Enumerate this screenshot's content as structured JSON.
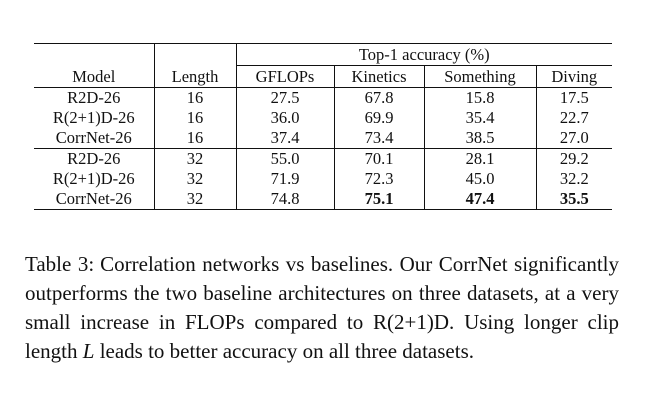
{
  "table": {
    "header_group_label": "Top-1 accuracy (%)",
    "columns": [
      "Model",
      "Length",
      "GFLOPs",
      "Kinetics",
      "Something",
      "Diving"
    ],
    "groups": [
      [
        {
          "model": "R2D-26",
          "length": "16",
          "gflops": "27.5",
          "kinetics": "67.8",
          "something": "15.8",
          "diving": "17.5",
          "bold": []
        },
        {
          "model": "R(2+1)D-26",
          "length": "16",
          "gflops": "36.0",
          "kinetics": "69.9",
          "something": "35.4",
          "diving": "22.7",
          "bold": []
        },
        {
          "model": "CorrNet-26",
          "length": "16",
          "gflops": "37.4",
          "kinetics": "73.4",
          "something": "38.5",
          "diving": "27.0",
          "bold": []
        }
      ],
      [
        {
          "model": "R2D-26",
          "length": "32",
          "gflops": "55.0",
          "kinetics": "70.1",
          "something": "28.1",
          "diving": "29.2",
          "bold": []
        },
        {
          "model": "R(2+1)D-26",
          "length": "32",
          "gflops": "71.9",
          "kinetics": "72.3",
          "something": "45.0",
          "diving": "32.2",
          "bold": []
        },
        {
          "model": "CorrNet-26",
          "length": "32",
          "gflops": "74.8",
          "kinetics": "75.1",
          "something": "47.4",
          "diving": "35.5",
          "bold": [
            "kinetics",
            "something",
            "diving"
          ]
        }
      ]
    ]
  },
  "caption": {
    "label": "Table 3:",
    "text_before_var": "Correlation networks vs baselines. Our CorrNet significantly outperforms the two baseline architectures on three datasets, at a very small increase in FLOPs compared to R(2+1)D. Using longer clip length ",
    "variable": "L",
    "text_after_var": " leads to better accuracy on all three datasets."
  }
}
